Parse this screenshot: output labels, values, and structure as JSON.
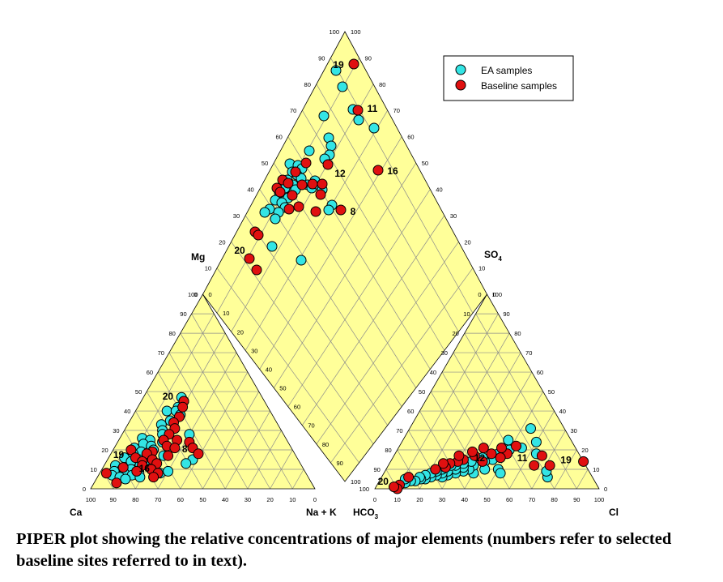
{
  "caption": "PIPER plot showing the relative concentrations of major elements (numbers refer to selected baseline sites referred to in text).",
  "colors": {
    "fill": "#FFFF99",
    "grid": "#8c8c8c",
    "ea": "#33E5E5",
    "baseline": "#E01010"
  },
  "chart_data": {
    "type": "scatter",
    "subtype": "piper",
    "axes": {
      "cation_corners": [
        "Ca",
        "Na + K",
        "Mg"
      ],
      "anion_corners": [
        "HCO3",
        "Cl",
        "SO4"
      ],
      "labels": {
        "ca": "Ca",
        "nak": "Na + K",
        "mg": "Mg",
        "hco3": "HCO",
        "hco3_sub": "3",
        "cl": "Cl",
        "so4": "SO",
        "so4_sub": "4"
      },
      "range": [
        0,
        100
      ],
      "tick_step": 10,
      "grid": true
    },
    "legend": {
      "position": "top-right",
      "entries": [
        "EA samples",
        "Baseline samples"
      ]
    },
    "series": [
      {
        "name": "EA samples",
        "cation": [
          {
            "mg": 47,
            "nak": 17
          },
          {
            "mg": 45,
            "nak": 19
          },
          {
            "mg": 42,
            "nak": 18
          },
          {
            "mg": 40,
            "nak": 14
          },
          {
            "mg": 40,
            "nak": 18
          },
          {
            "mg": 38,
            "nak": 21
          },
          {
            "mg": 35,
            "nak": 18
          },
          {
            "mg": 33,
            "nak": 15
          },
          {
            "mg": 30,
            "nak": 17
          },
          {
            "mg": 28,
            "nak": 18
          },
          {
            "mg": 28,
            "nak": 30
          },
          {
            "mg": 26,
            "nak": 10
          },
          {
            "mg": 25,
            "nak": 14
          },
          {
            "mg": 24,
            "nak": 20
          },
          {
            "mg": 23,
            "nak": 12
          },
          {
            "mg": 22,
            "nak": 16
          },
          {
            "mg": 21,
            "nak": 9
          },
          {
            "mg": 20,
            "nak": 18
          },
          {
            "mg": 19,
            "nak": 13
          },
          {
            "mg": 18,
            "nak": 10
          },
          {
            "mg": 17,
            "nak": 17
          },
          {
            "mg": 17,
            "nak": 24
          },
          {
            "mg": 16,
            "nak": 7
          },
          {
            "mg": 15,
            "nak": 14
          },
          {
            "mg": 15,
            "nak": 38
          },
          {
            "mg": 14,
            "nak": 11
          },
          {
            "mg": 14,
            "nak": 20
          },
          {
            "mg": 13,
            "nak": 36
          },
          {
            "mg": 12,
            "nak": 5
          },
          {
            "mg": 12,
            "nak": 16
          },
          {
            "mg": 11,
            "nak": 22
          },
          {
            "mg": 10,
            "nak": 9
          },
          {
            "mg": 10,
            "nak": 13
          },
          {
            "mg": 9,
            "nak": 6
          },
          {
            "mg": 9,
            "nak": 17
          },
          {
            "mg": 8,
            "nak": 11
          },
          {
            "mg": 8,
            "nak": 27
          },
          {
            "mg": 7,
            "nak": 6
          },
          {
            "mg": 7,
            "nak": 15
          },
          {
            "mg": 6,
            "nak": 19
          },
          {
            "mg": 6,
            "nak": 10
          },
          {
            "mg": 5,
            "nak": 13
          },
          {
            "mg": 9,
            "nak": 30
          }
        ],
        "anion": [
          {
            "cl": 74,
            "so4": 6
          },
          {
            "cl": 72,
            "so4": 9
          },
          {
            "cl": 63,
            "so4": 18
          },
          {
            "cl": 60,
            "so4": 24
          },
          {
            "cl": 55,
            "so4": 21
          },
          {
            "cl": 50,
            "so4": 20
          },
          {
            "cl": 46,
            "so4": 18
          },
          {
            "cl": 45,
            "so4": 15
          },
          {
            "cl": 42,
            "so4": 14
          },
          {
            "cl": 40,
            "so4": 8
          },
          {
            "cl": 40,
            "so4": 16
          },
          {
            "cl": 38,
            "so4": 12
          },
          {
            "cl": 37,
            "so4": 10
          },
          {
            "cl": 36,
            "so4": 14
          },
          {
            "cl": 35,
            "so4": 9
          },
          {
            "cl": 34,
            "so4": 11
          },
          {
            "cl": 33,
            "so4": 13
          },
          {
            "cl": 32,
            "so4": 8
          },
          {
            "cl": 31,
            "so4": 10
          },
          {
            "cl": 30,
            "so4": 12
          },
          {
            "cl": 29,
            "so4": 7
          },
          {
            "cl": 28,
            "so4": 9
          },
          {
            "cl": 28,
            "so4": 12
          },
          {
            "cl": 27,
            "so4": 6
          },
          {
            "cl": 26,
            "so4": 8
          },
          {
            "cl": 25,
            "so4": 10
          },
          {
            "cl": 24,
            "so4": 7
          },
          {
            "cl": 23,
            "so4": 9
          },
          {
            "cl": 22,
            "so4": 6
          },
          {
            "cl": 21,
            "so4": 8
          },
          {
            "cl": 20,
            "so4": 5
          },
          {
            "cl": 19,
            "so4": 7
          },
          {
            "cl": 18,
            "so4": 5
          },
          {
            "cl": 17,
            "so4": 6
          },
          {
            "cl": 16,
            "so4": 4
          },
          {
            "cl": 14,
            "so4": 4
          },
          {
            "cl": 12,
            "so4": 3
          },
          {
            "cl": 11,
            "so4": 5
          },
          {
            "cl": 44,
            "so4": 10
          },
          {
            "cl": 50,
            "so4": 10
          },
          {
            "cl": 52,
            "so4": 8
          },
          {
            "cl": 47,
            "so4": 25
          },
          {
            "cl": 54,
            "so4": 31
          }
        ],
        "diamond": [
          {
            "x": 415,
            "y": 87
          },
          {
            "x": 423,
            "y": 107
          },
          {
            "x": 436,
            "y": 135
          },
          {
            "x": 443,
            "y": 148
          },
          {
            "x": 462,
            "y": 158
          },
          {
            "x": 400,
            "y": 143
          },
          {
            "x": 406,
            "y": 170
          },
          {
            "x": 409,
            "y": 180
          },
          {
            "x": 407,
            "y": 191
          },
          {
            "x": 401,
            "y": 196
          },
          {
            "x": 358,
            "y": 202
          },
          {
            "x": 368,
            "y": 204
          },
          {
            "x": 373,
            "y": 208
          },
          {
            "x": 361,
            "y": 212
          },
          {
            "x": 367,
            "y": 216
          },
          {
            "x": 372,
            "y": 220
          },
          {
            "x": 355,
            "y": 222
          },
          {
            "x": 362,
            "y": 228
          },
          {
            "x": 352,
            "y": 232
          },
          {
            "x": 365,
            "y": 234
          },
          {
            "x": 345,
            "y": 238
          },
          {
            "x": 356,
            "y": 244
          },
          {
            "x": 340,
            "y": 247
          },
          {
            "x": 348,
            "y": 250
          },
          {
            "x": 352,
            "y": 256
          },
          {
            "x": 333,
            "y": 258
          },
          {
            "x": 327,
            "y": 262
          },
          {
            "x": 344,
            "y": 262
          },
          {
            "x": 340,
            "y": 270
          },
          {
            "x": 380,
            "y": 228
          },
          {
            "x": 385,
            "y": 232
          },
          {
            "x": 391,
            "y": 227
          },
          {
            "x": 398,
            "y": 234
          },
          {
            "x": 410,
            "y": 253
          },
          {
            "x": 406,
            "y": 259
          },
          {
            "x": 336,
            "y": 304
          },
          {
            "x": 372,
            "y": 321
          },
          {
            "x": 382,
            "y": 186
          },
          {
            "x": 389,
            "y": 223
          }
        ]
      },
      {
        "name": "Baseline samples",
        "cation": [
          {
            "mg": 45,
            "nak": 19
          },
          {
            "mg": 42,
            "nak": 20
          },
          {
            "mg": 37,
            "nak": 21
          },
          {
            "mg": 34,
            "nak": 20
          },
          {
            "mg": 31,
            "nak": 22
          },
          {
            "mg": 28,
            "nak": 21
          },
          {
            "mg": 25,
            "nak": 26
          },
          {
            "mg": 25,
            "nak": 20
          },
          {
            "mg": 24,
            "nak": 32
          },
          {
            "mg": 22,
            "nak": 23
          },
          {
            "mg": 21,
            "nak": 35
          },
          {
            "mg": 21,
            "nak": 27
          },
          {
            "mg": 20,
            "nak": 8
          },
          {
            "mg": 19,
            "nak": 18
          },
          {
            "mg": 18,
            "nak": 39
          },
          {
            "mg": 18,
            "nak": 16
          },
          {
            "mg": 17,
            "nak": 26
          },
          {
            "mg": 16,
            "nak": 12
          },
          {
            "mg": 15,
            "nak": 20
          },
          {
            "mg": 14,
            "nak": 16
          },
          {
            "mg": 13,
            "nak": 23
          },
          {
            "mg": 12,
            "nak": 17
          },
          {
            "mg": 11,
            "nak": 9
          },
          {
            "mg": 10,
            "nak": 22
          },
          {
            "mg": 9,
            "nak": 16
          },
          {
            "mg": 8,
            "nak": 26
          },
          {
            "mg": 8,
            "nak": 3
          },
          {
            "mg": 6,
            "nak": 25
          },
          {
            "mg": 3,
            "nak": 10
          }
        ],
        "anion": [
          {
            "cl": 86,
            "so4": 14
          },
          {
            "cl": 66,
            "so4": 17
          },
          {
            "cl": 65,
            "so4": 12
          },
          {
            "cl": 52,
            "so4": 22
          },
          {
            "cl": 50,
            "so4": 18
          },
          {
            "cl": 48,
            "so4": 16
          },
          {
            "cl": 46,
            "so4": 21
          },
          {
            "cl": 43,
            "so4": 18
          },
          {
            "cl": 41,
            "so4": 14
          },
          {
            "cl": 38,
            "so4": 21
          },
          {
            "cl": 36,
            "so4": 17
          },
          {
            "cl": 34,
            "so4": 19
          },
          {
            "cl": 32,
            "so4": 15
          },
          {
            "cl": 30,
            "so4": 14
          },
          {
            "cl": 29,
            "so4": 17
          },
          {
            "cl": 27,
            "so4": 13
          },
          {
            "cl": 26,
            "so4": 11
          },
          {
            "cl": 24,
            "so4": 13
          },
          {
            "cl": 22,
            "so4": 10
          },
          {
            "cl": 12,
            "so4": 6
          },
          {
            "cl": 10,
            "so4": 2
          },
          {
            "cl": 10,
            "so4": 0
          },
          {
            "cl": 8,
            "so4": 1
          },
          {
            "cl": 72,
            "so4": 12
          }
        ],
        "diamond": [
          {
            "x": 437,
            "y": 79
          },
          {
            "x": 442,
            "y": 136
          },
          {
            "x": 467,
            "y": 210
          },
          {
            "x": 405,
            "y": 203
          },
          {
            "x": 378,
            "y": 201
          },
          {
            "x": 365,
            "y": 212
          },
          {
            "x": 349,
            "y": 222
          },
          {
            "x": 356,
            "y": 226
          },
          {
            "x": 373,
            "y": 228
          },
          {
            "x": 386,
            "y": 227
          },
          {
            "x": 398,
            "y": 227
          },
          {
            "x": 342,
            "y": 232
          },
          {
            "x": 346,
            "y": 237
          },
          {
            "x": 361,
            "y": 241
          },
          {
            "x": 396,
            "y": 240
          },
          {
            "x": 369,
            "y": 255
          },
          {
            "x": 357,
            "y": 258
          },
          {
            "x": 390,
            "y": 261
          },
          {
            "x": 421,
            "y": 259
          },
          {
            "x": 315,
            "y": 286
          },
          {
            "x": 319,
            "y": 290
          },
          {
            "x": 308,
            "y": 319
          },
          {
            "x": 317,
            "y": 333
          }
        ]
      }
    ],
    "annotations": [
      {
        "text": "19",
        "cation": {
          "mg": 15,
          "nak": 10
        },
        "anion": {
          "cl": 84,
          "so4": 14
        },
        "diamond": {
          "x": 418,
          "y": 80
        }
      },
      {
        "text": "11",
        "anion": {
          "cl": 64,
          "so4": 15
        },
        "diamond": {
          "x": 460,
          "y": 134
        }
      },
      {
        "text": "16",
        "cation": {
          "mg": 8,
          "nak": 25
        },
        "diamond": {
          "x": 485,
          "y": 211
        }
      },
      {
        "text": "12",
        "anion": {
          "cl": 45,
          "so4": 15
        },
        "diamond": {
          "x": 420,
          "y": 214
        }
      },
      {
        "text": "8",
        "cation": {
          "mg": 18,
          "nak": 38
        },
        "diamond": {
          "x": 436,
          "y": 261
        }
      },
      {
        "text": "20",
        "cation": {
          "mg": 45,
          "nak": 17
        },
        "anion": {
          "cl": 8,
          "so4": 3
        },
        "diamond": {
          "x": 296,
          "y": 309
        }
      }
    ]
  }
}
